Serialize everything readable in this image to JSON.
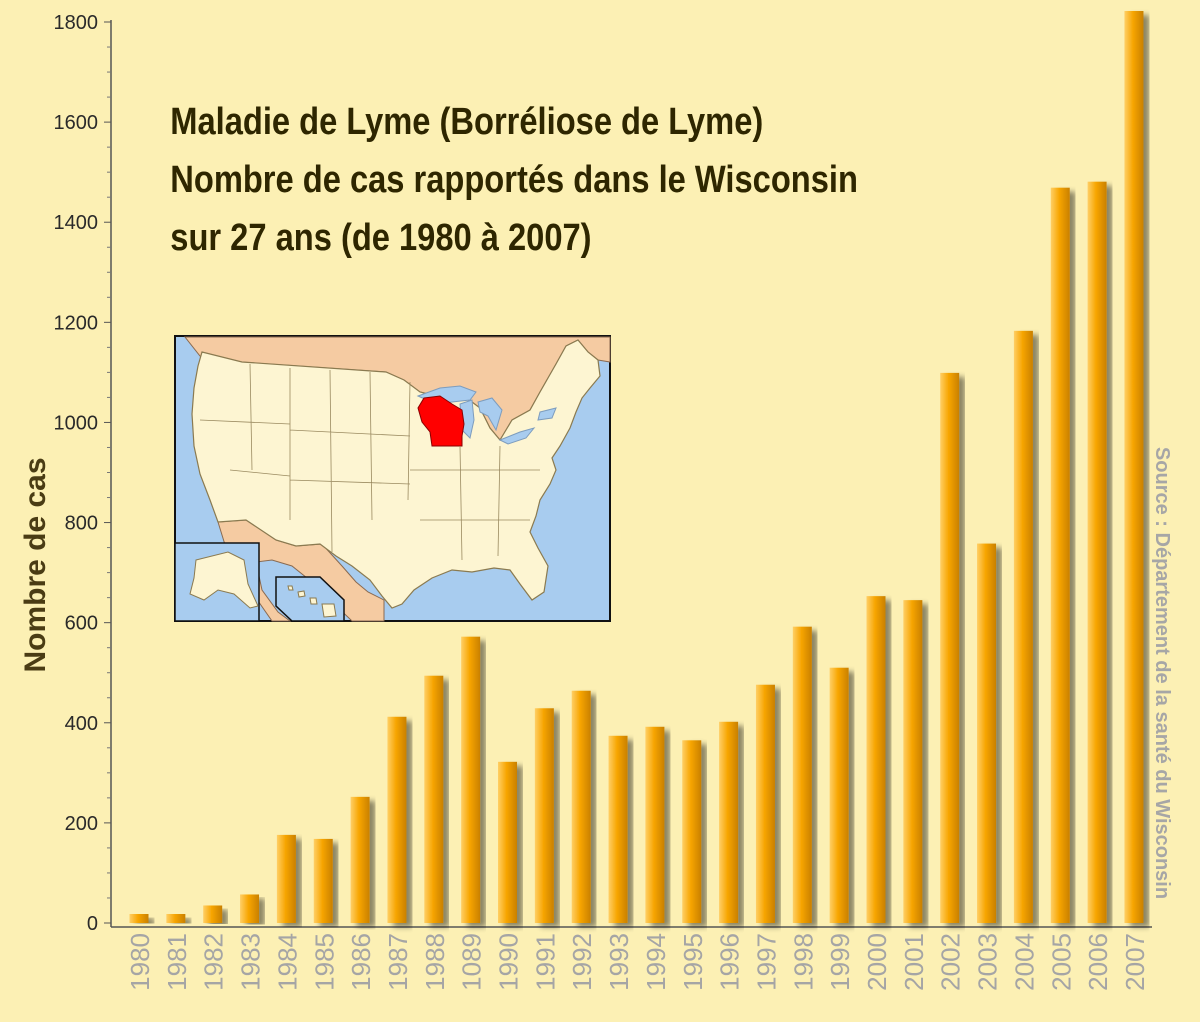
{
  "chart_data": {
    "type": "bar",
    "title": [
      "Maladie de Lyme (Borréliose de Lyme)",
      "Nombre de cas rapportés dans le Wisconsin",
      "sur 27 ans (de 1980 à 2007)"
    ],
    "xlabel": "",
    "ylabel": "Nombre de cas",
    "source": "Source : Département de la santé du Wisconsin",
    "ylim": [
      0,
      1800
    ],
    "yticks": [
      "0",
      "200",
      "400",
      "600",
      "800",
      "1000",
      "1200",
      "1400",
      "1600",
      "1800"
    ],
    "categories": [
      "1980",
      "1981",
      "1982",
      "1983",
      "1984",
      "1985",
      "1986",
      "1987",
      "1988",
      "1089",
      "1990",
      "1991",
      "1992",
      "1993",
      "1994",
      "1995",
      "1996",
      "1997",
      "1998",
      "1999",
      "2000",
      "2001",
      "2002",
      "2003",
      "2004",
      "2005",
      "2006",
      "2007"
    ],
    "values": [
      18,
      18,
      35,
      57,
      176,
      168,
      252,
      412,
      494,
      572,
      322,
      429,
      464,
      374,
      392,
      365,
      402,
      476,
      592,
      510,
      653,
      645,
      1099,
      758,
      1183,
      1469,
      1481,
      1822
    ],
    "grid": false,
    "colors": {
      "bar": "#f5a000",
      "bar_light": "#ffc64d",
      "bar_dark": "#c77f00",
      "background": "#fcf0b4"
    }
  },
  "inset_map": {
    "highlight_region": "Wisconsin",
    "colors": {
      "water": "#a8ccef",
      "land": "#fdf5d2",
      "foreign_land": "#f5cba2",
      "highlight": "#ff0000"
    }
  }
}
